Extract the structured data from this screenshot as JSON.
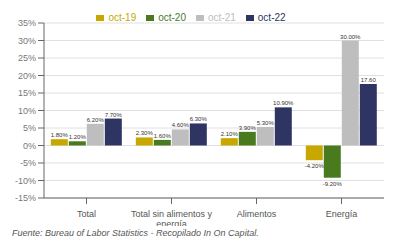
{
  "chart_data": {
    "type": "bar",
    "categories": [
      "Total",
      "Total sin alimentos y\nenergía",
      "Alimentos",
      "Energía"
    ],
    "series": [
      {
        "name": "oct-19",
        "color": "#C8A800",
        "values": [
          1.8,
          2.3,
          2.1,
          -4.2
        ],
        "value_labels": [
          "1.80%",
          "2.30%",
          "2.10%",
          "-4.20%"
        ]
      },
      {
        "name": "oct-20",
        "color": "#4A7A1E",
        "values": [
          1.2,
          1.6,
          3.9,
          -9.2
        ],
        "value_labels": [
          "1.20%",
          "1.60%",
          "3.90%",
          "-9.20%"
        ]
      },
      {
        "name": "oct-21",
        "color": "#BEBEBE",
        "values": [
          6.2,
          4.6,
          5.3,
          30.0
        ],
        "value_labels": [
          "6.20%",
          "4.60%",
          "5.30%",
          "30.00%"
        ]
      },
      {
        "name": "oct-22",
        "color": "#2E3563",
        "values": [
          7.7,
          6.3,
          10.9,
          17.6
        ],
        "value_labels": [
          "7.70%",
          "6.30%",
          "10.90%",
          "17.60"
        ]
      }
    ],
    "ylim": [
      -15,
      35
    ],
    "yticks": [
      {
        "value": -15,
        "label": "-15%"
      },
      {
        "value": -10,
        "label": "-10%"
      },
      {
        "value": -5,
        "label": "-5%"
      },
      {
        "value": 0,
        "label": "0%"
      },
      {
        "value": 5,
        "label": "5%"
      },
      {
        "value": 10,
        "label": "10%"
      },
      {
        "value": 15,
        "label": "15%"
      },
      {
        "value": 20,
        "label": "20%"
      },
      {
        "value": 25,
        "label": "25%"
      },
      {
        "value": 30,
        "label": "30%"
      },
      {
        "value": 35,
        "label": "35%"
      }
    ],
    "grid": true,
    "legend": "top",
    "data_labels": true,
    "annotations": [
      "Fuente: Bureau of Labor Statistics - Recopilado In On Capital."
    ]
  }
}
